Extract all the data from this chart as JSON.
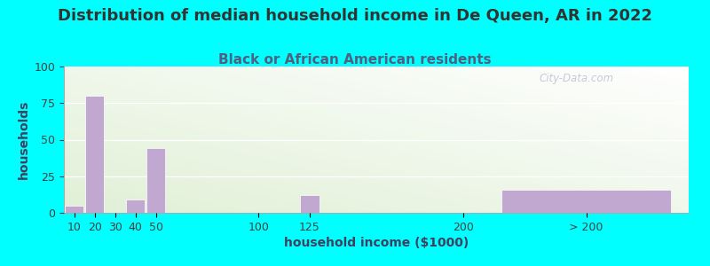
{
  "title": "Distribution of median household income in De Queen, AR in 2022",
  "subtitle": "Black or African American residents",
  "xlabel": "household income ($1000)",
  "ylabel": "households",
  "background_outer": "#00FFFF",
  "bar_color": "#C0A8D0",
  "ylim": [
    0,
    100
  ],
  "yticks": [
    0,
    25,
    50,
    75,
    100
  ],
  "x_labels": [
    "10",
    "20",
    "30",
    "40",
    "50",
    "100",
    "125",
    "200",
    "> 200"
  ],
  "bar_centers": [
    10,
    20,
    30,
    40,
    50,
    100,
    125,
    200,
    260
  ],
  "bar_widths": [
    10,
    10,
    10,
    10,
    10,
    10,
    10,
    10,
    90
  ],
  "bar_heights": [
    5,
    80,
    0,
    9,
    44,
    0,
    12,
    0,
    16
  ],
  "tick_positions": [
    10,
    20,
    30,
    40,
    50,
    100,
    125,
    200,
    260
  ],
  "xlim": [
    5,
    310
  ],
  "watermark": "City-Data.com",
  "title_fontsize": 13,
  "subtitle_fontsize": 11,
  "axis_label_fontsize": 10,
  "tick_fontsize": 9,
  "title_color": "#333333",
  "subtitle_color": "#506080",
  "axis_label_color": "#404060"
}
